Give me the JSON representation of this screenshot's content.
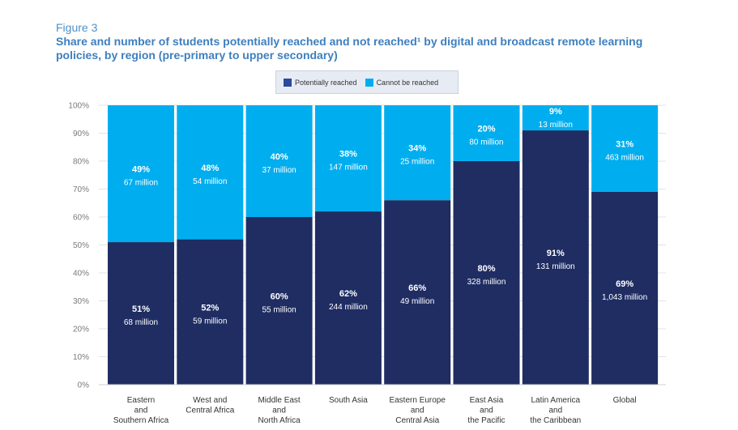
{
  "figure_label": "Figure 3",
  "title": "Share and number of students potentially reached and not reached¹ by digital and broadcast remote learning policies, by region (pre-primary to upper secondary)",
  "legend": [
    {
      "label": "Potentially reached",
      "color": "#2c4a9c"
    },
    {
      "label": "Cannot be reached",
      "color": "#00aeef"
    }
  ],
  "chart_data": {
    "type": "bar",
    "stacked": true,
    "percent_scale": true,
    "ylim": [
      0,
      100
    ],
    "yticks": [
      "0%",
      "10%",
      "20%",
      "30%",
      "40%",
      "50%",
      "60%",
      "70%",
      "80%",
      "90%",
      "100%"
    ],
    "grid": true,
    "legend_position": "top-center",
    "categories": [
      [
        "Eastern",
        "and",
        "Southern Africa"
      ],
      [
        "West and",
        "Central Africa"
      ],
      [
        "Middle East",
        "and",
        "North Africa"
      ],
      [
        "South Asia"
      ],
      [
        "Eastern Europe",
        "and",
        "Central Asia"
      ],
      [
        "East Asia",
        "and",
        "the Pacific"
      ],
      [
        "Latin America",
        "and",
        "the Caribbean"
      ],
      [
        "Global"
      ]
    ],
    "series": [
      {
        "name": "Potentially reached",
        "color": "#1f2d63",
        "values": [
          51,
          52,
          60,
          62,
          66,
          80,
          91,
          69
        ],
        "pct_labels": [
          "51%",
          "52%",
          "60%",
          "62%",
          "66%",
          "80%",
          "91%",
          "69%"
        ],
        "count_labels": [
          "68 million",
          "59 million",
          "55 million",
          "244 million",
          "49 million",
          "328 million",
          "131 million",
          "1,043 million"
        ]
      },
      {
        "name": "Cannot be reached",
        "color": "#00aeef",
        "values": [
          49,
          48,
          40,
          38,
          34,
          20,
          9,
          31
        ],
        "pct_labels": [
          "49%",
          "48%",
          "40%",
          "38%",
          "34%",
          "20%",
          "9%",
          "31%"
        ],
        "count_labels": [
          "67 million",
          "54 million",
          "37 million",
          "147 million",
          "25 million",
          "80 million",
          "13 million",
          "463 million"
        ]
      }
    ]
  }
}
